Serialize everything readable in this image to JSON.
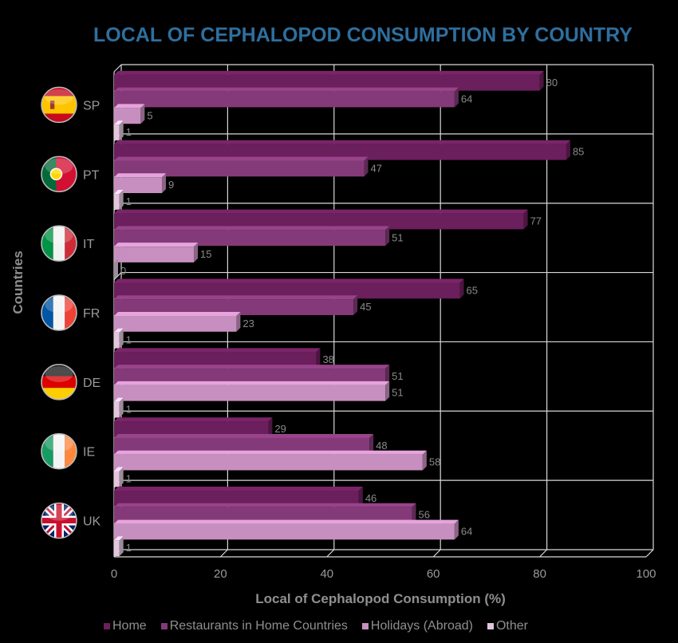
{
  "chart_data": {
    "type": "bar",
    "orientation": "horizontal",
    "title": "LOCAL OF CEPHALOPOD CONSUMPTION BY COUNTRY",
    "xlabel": "Local of Cephalopod Consumption (%)",
    "ylabel": "Countries",
    "xlim": [
      0,
      100
    ],
    "xticks": [
      "0",
      "20",
      "40",
      "60",
      "80",
      "100"
    ],
    "grid": true,
    "legend_position": "bottom",
    "categories": [
      "SP",
      "PT",
      "IT",
      "FR",
      "DE",
      "IE",
      "UK"
    ],
    "category_flags": [
      "spain-flag-icon",
      "portugal-flag-icon",
      "italy-flag-icon",
      "france-flag-icon",
      "germany-flag-icon",
      "ireland-flag-icon",
      "uk-flag-icon"
    ],
    "series": [
      {
        "name": "Home",
        "color": "#6b1f5c",
        "values": [
          80,
          85,
          77,
          65,
          38,
          29,
          46
        ]
      },
      {
        "name": "Restaurants in Home Countries",
        "color": "#843a78",
        "values": [
          64,
          47,
          51,
          45,
          51,
          48,
          56
        ]
      },
      {
        "name": "Holidays (Abroad)",
        "color": "#c78fbf",
        "values": [
          5,
          9,
          15,
          23,
          51,
          58,
          64
        ]
      },
      {
        "name": "Other",
        "color": "#e3c5de",
        "values": [
          1,
          1,
          0,
          1,
          1,
          1,
          1
        ]
      }
    ]
  }
}
